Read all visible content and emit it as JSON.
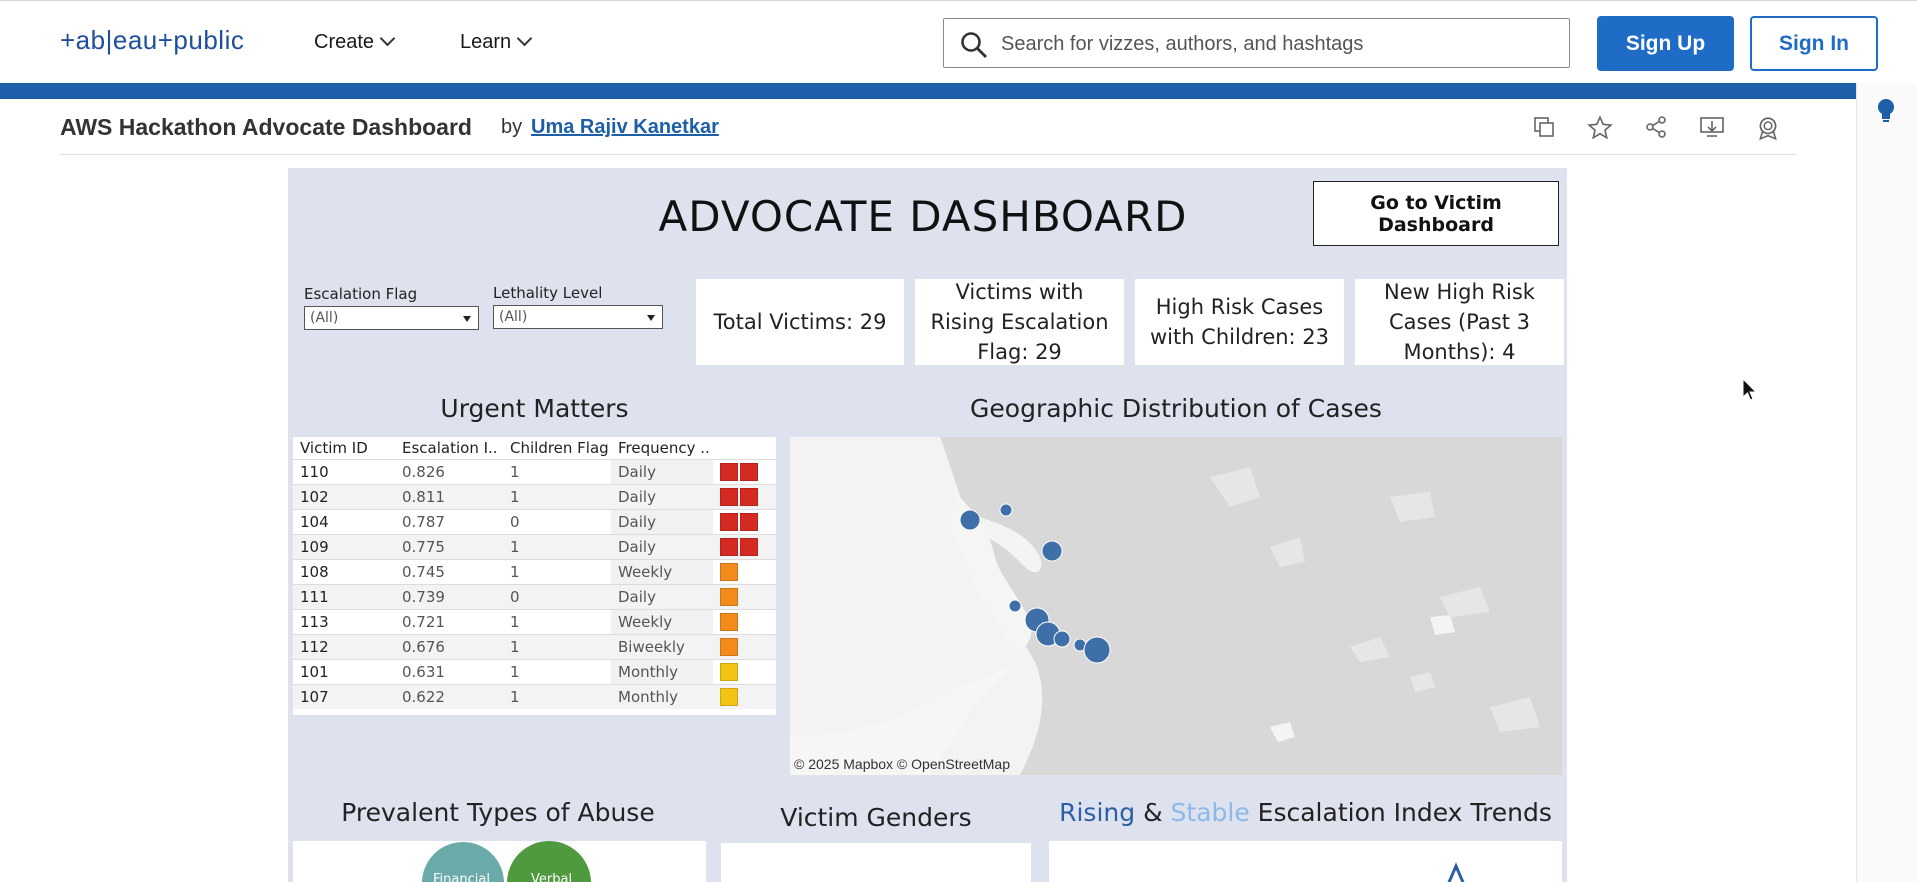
{
  "header": {
    "logo": "+ab|eau+public",
    "nav": [
      {
        "label": "Create"
      },
      {
        "label": "Learn"
      }
    ],
    "search_placeholder": "Search for vizzes, authors, and hashtags",
    "sign_up": "Sign Up",
    "sign_in": "Sign In"
  },
  "viz": {
    "title": "AWS Hackathon Advocate Dashboard",
    "by": "by",
    "author": "Uma Rajiv Kanetkar"
  },
  "dashboard": {
    "title": "ADVOCATE DASHBOARD",
    "go_button": "Go to Victim Dashboard",
    "filters": [
      {
        "label": "Escalation Flag",
        "value": "(All)"
      },
      {
        "label": "Lethality Level",
        "value": "(All)"
      }
    ],
    "kpis": [
      "Total Victims: 29",
      "Victims with Rising Escalation Flag: 29",
      "High Risk Cases with Children: 23",
      "New High Risk Cases (Past 3 Months): 4"
    ],
    "urgent": {
      "title": "Urgent Matters",
      "columns": [
        "Victim ID",
        "Escalation I..",
        "Children Flag",
        "Frequency .."
      ],
      "rows": [
        {
          "id": "110",
          "esc": "0.826",
          "children": "1",
          "freq": "Daily",
          "level": 2,
          "color": "#d42a22"
        },
        {
          "id": "102",
          "esc": "0.811",
          "children": "1",
          "freq": "Daily",
          "level": 2,
          "color": "#d42a22"
        },
        {
          "id": "104",
          "esc": "0.787",
          "children": "0",
          "freq": "Daily",
          "level": 2,
          "color": "#d42a22"
        },
        {
          "id": "109",
          "esc": "0.775",
          "children": "1",
          "freq": "Daily",
          "level": 2,
          "color": "#d42a22"
        },
        {
          "id": "108",
          "esc": "0.745",
          "children": "1",
          "freq": "Weekly",
          "level": 1,
          "color": "#f28a1c"
        },
        {
          "id": "111",
          "esc": "0.739",
          "children": "0",
          "freq": "Daily",
          "level": 1,
          "color": "#f28a1c"
        },
        {
          "id": "113",
          "esc": "0.721",
          "children": "1",
          "freq": "Weekly",
          "level": 1,
          "color": "#f28a1c"
        },
        {
          "id": "112",
          "esc": "0.676",
          "children": "1",
          "freq": "Biweekly",
          "level": 1,
          "color": "#f28a1c"
        },
        {
          "id": "101",
          "esc": "0.631",
          "children": "1",
          "freq": "Monthly",
          "level": 1,
          "color": "#f2c414"
        },
        {
          "id": "107",
          "esc": "0.622",
          "children": "1",
          "freq": "Monthly",
          "level": 1,
          "color": "#f2c414"
        }
      ]
    },
    "map": {
      "title": "Geographic Distribution of Cases",
      "attribution": "© 2025 Mapbox  © OpenStreetMap"
    },
    "abuse": {
      "title": "Prevalent Types of Abuse",
      "bubble1": "Financial",
      "bubble2": "Verbal"
    },
    "genders": {
      "title": "Victim Genders"
    },
    "trends": {
      "title_rising": "Rising",
      "title_amp": "&",
      "title_stable": "Stable",
      "title_rest": "Escalation Index Trends"
    }
  },
  "colors": {
    "brand_blue": "#1f6cc6",
    "dashboard_bg": "#dde2ee",
    "high": "#d42a22",
    "medium": "#f28a1c",
    "low": "#f2c414"
  }
}
